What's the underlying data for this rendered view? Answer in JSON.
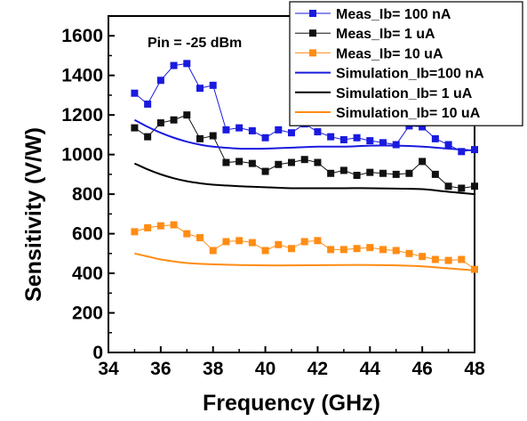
{
  "chart_data": {
    "type": "line",
    "xlabel": "Frequency (GHz)",
    "ylabel": "Sensitivity (V/W)",
    "xlim": [
      34,
      48
    ],
    "ylim": [
      0,
      1700
    ],
    "xticks": [
      34,
      36,
      38,
      40,
      42,
      44,
      46,
      48
    ],
    "yticks": [
      0,
      200,
      400,
      600,
      800,
      1000,
      1200,
      1400,
      1600
    ],
    "annotation": "Pin = -25 dBm",
    "legend_placement": "top-right",
    "grid": false,
    "series": [
      {
        "name": "Meas_Ib= 100 nA",
        "kind": "line-marker",
        "color": "#1a1adf",
        "x": [
          35,
          35.5,
          36,
          36.5,
          37,
          37.5,
          38,
          38.5,
          39,
          39.5,
          40,
          40.5,
          41,
          41.5,
          42,
          42.5,
          43,
          43.5,
          44,
          44.5,
          45,
          45.5,
          46,
          46.5,
          47,
          47.5,
          48
        ],
        "y": [
          1310,
          1255,
          1375,
          1450,
          1460,
          1335,
          1350,
          1125,
          1135,
          1120,
          1085,
          1125,
          1110,
          1155,
          1115,
          1090,
          1075,
          1085,
          1070,
          1060,
          1050,
          1145,
          1140,
          1080,
          1050,
          1015,
          1025
        ]
      },
      {
        "name": "Meas_Ib= 1 uA",
        "kind": "line-marker",
        "color": "#111111",
        "x": [
          35,
          35.5,
          36,
          36.5,
          37,
          37.5,
          38,
          38.5,
          39,
          39.5,
          40,
          40.5,
          41,
          41.5,
          42,
          42.5,
          43,
          43.5,
          44,
          44.5,
          45,
          45.5,
          46,
          46.5,
          47,
          47.5,
          48
        ],
        "y": [
          1135,
          1090,
          1160,
          1175,
          1200,
          1080,
          1095,
          960,
          965,
          955,
          915,
          950,
          960,
          975,
          960,
          905,
          920,
          895,
          910,
          905,
          900,
          905,
          965,
          900,
          840,
          830,
          840
        ]
      },
      {
        "name": "Meas_Ib= 10 uA",
        "kind": "line-marker",
        "color": "#ff8c14",
        "x": [
          35,
          35.5,
          36,
          36.5,
          37,
          37.5,
          38,
          38.5,
          39,
          39.5,
          40,
          40.5,
          41,
          41.5,
          42,
          42.5,
          43,
          43.5,
          44,
          44.5,
          45,
          45.5,
          46,
          46.5,
          47,
          47.5,
          48
        ],
        "y": [
          610,
          630,
          640,
          645,
          600,
          580,
          515,
          560,
          565,
          555,
          515,
          545,
          525,
          560,
          565,
          520,
          520,
          525,
          530,
          520,
          515,
          500,
          485,
          470,
          465,
          470,
          420
        ]
      },
      {
        "name": "Simulation_Ib=100 nA",
        "kind": "line",
        "color": "#1a1adf",
        "x": [
          35,
          35.5,
          36,
          36.5,
          37,
          37.5,
          38,
          39,
          40,
          41,
          42,
          43,
          44,
          45,
          46,
          47,
          48
        ],
        "y": [
          1175,
          1140,
          1110,
          1085,
          1065,
          1050,
          1040,
          1030,
          1030,
          1035,
          1040,
          1040,
          1045,
          1045,
          1040,
          1030,
          1020
        ]
      },
      {
        "name": "Simulation_Ib= 1 uA",
        "kind": "line",
        "color": "#000000",
        "x": [
          35,
          35.5,
          36,
          36.5,
          37,
          37.5,
          38,
          39,
          40,
          41,
          42,
          43,
          44,
          45,
          46,
          47,
          48
        ],
        "y": [
          955,
          925,
          900,
          880,
          865,
          855,
          848,
          840,
          835,
          830,
          830,
          830,
          830,
          828,
          825,
          812,
          800
        ]
      },
      {
        "name": "Simulation_Ib= 10 uA",
        "kind": "line",
        "color": "#ff8c14",
        "x": [
          35,
          35.5,
          36,
          36.5,
          37,
          37.5,
          38,
          39,
          40,
          41,
          42,
          43,
          44,
          45,
          46,
          47,
          48
        ],
        "y": [
          500,
          485,
          470,
          460,
          452,
          448,
          445,
          442,
          440,
          440,
          441,
          442,
          442,
          440,
          435,
          425,
          415
        ]
      }
    ]
  }
}
